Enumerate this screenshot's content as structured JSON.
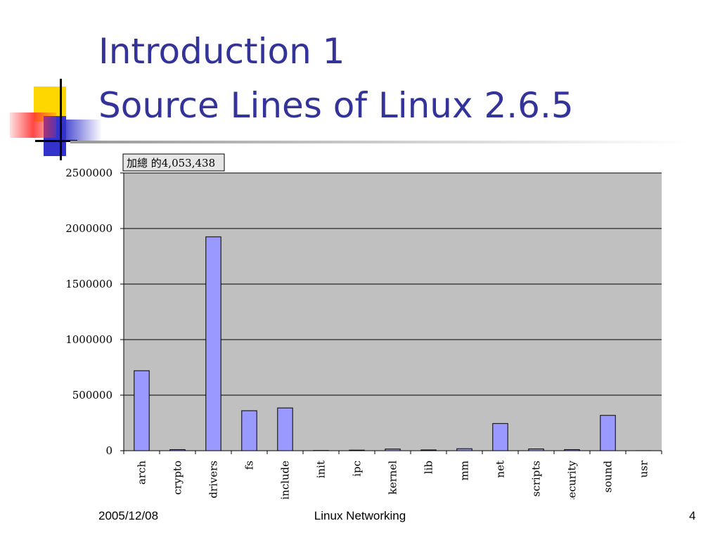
{
  "slide": {
    "title_line1": "Introduction 1",
    "title_line2": "Source Lines of Linux 2.6.5",
    "footer_date": "2005/12/08",
    "footer_center": "Linux Networking",
    "page_number": "4"
  },
  "colors": {
    "title": "#333399",
    "plot_bg": "#c0c0c0",
    "bar_fill": "#9999ff",
    "deco_yellow": "#ffd700",
    "deco_blue": "#3333cc",
    "deco_red": "#ff3333"
  },
  "chart_data": {
    "type": "bar",
    "total_label": "加總 的4,053,438",
    "categories": [
      "arch",
      "crypto",
      "drivers",
      "fs",
      "include",
      "init",
      "ipc",
      "kernel",
      "lib",
      "mm",
      "net",
      "scripts",
      "security",
      "sound",
      "usr"
    ],
    "values": [
      720000,
      10000,
      1925000,
      360000,
      385000,
      2000,
      5000,
      15000,
      7000,
      18000,
      245000,
      16000,
      10000,
      318000,
      500
    ],
    "ylim": [
      0,
      2500000
    ],
    "yticks": [
      "0",
      "500000",
      "1000000",
      "1500000",
      "2000000",
      "2500000"
    ],
    "grid": true,
    "legend": "none"
  }
}
